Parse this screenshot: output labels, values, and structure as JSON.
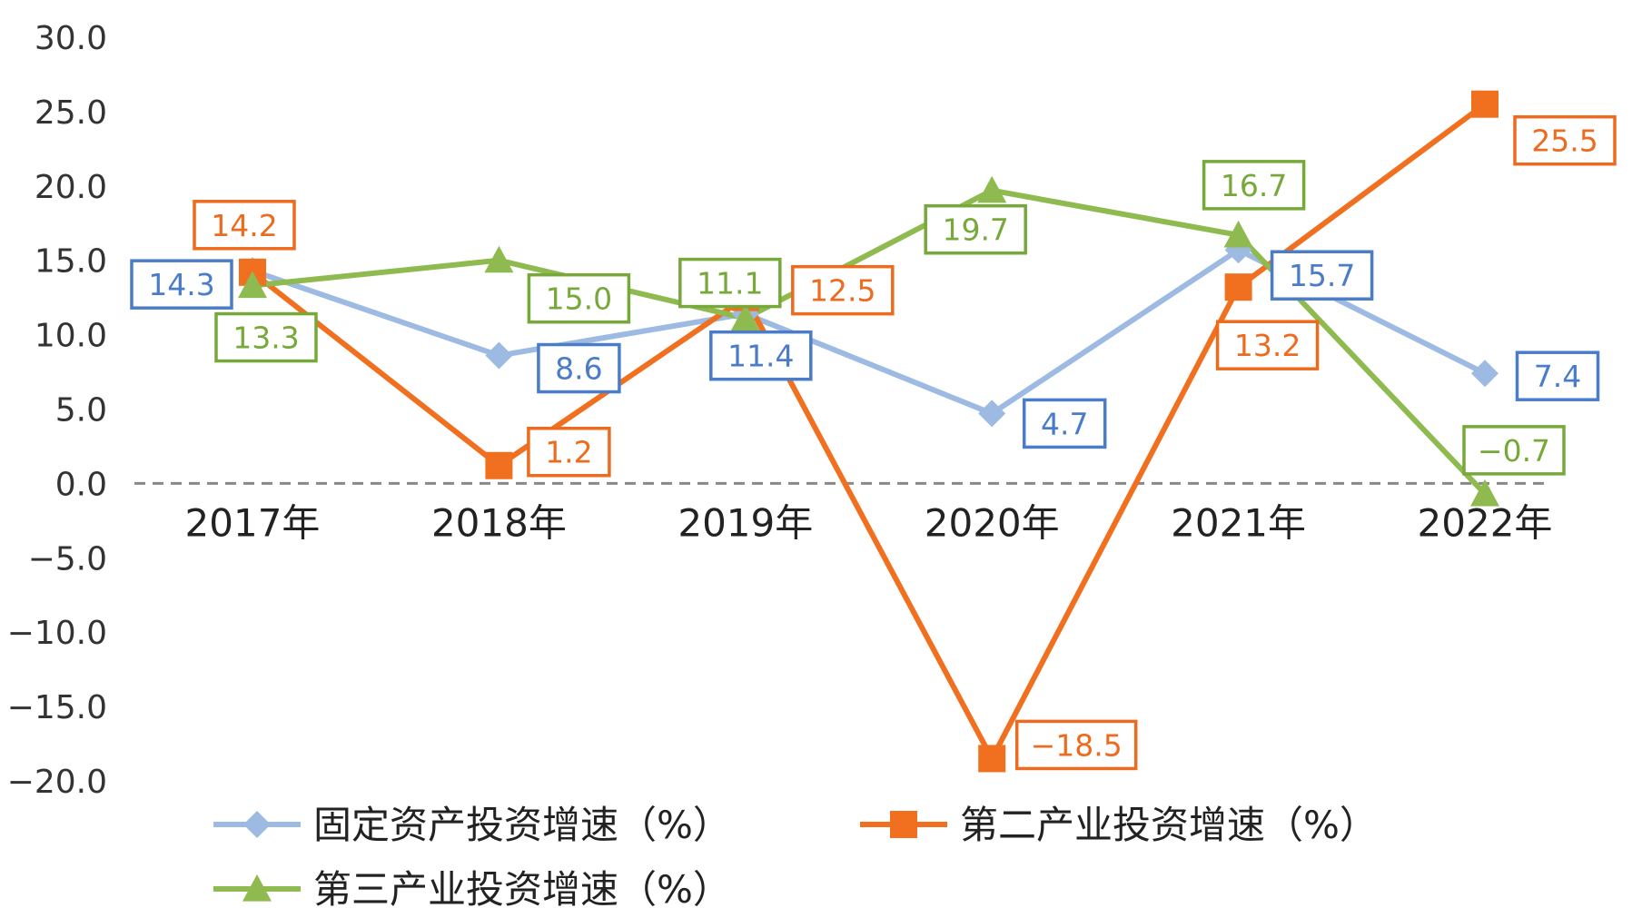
{
  "chart_data": {
    "type": "line",
    "categories": [
      "2017年",
      "2018年",
      "2019年",
      "2020年",
      "2021年",
      "2022年"
    ],
    "y_ticks": [
      "30.0",
      "25.0",
      "20.0",
      "15.0",
      "10.0",
      "5.0",
      "0.0",
      "−5.0",
      "−10.0",
      "−15.0",
      "−20.0"
    ],
    "ylim": [
      -20,
      30
    ],
    "zero_line": "dashed",
    "grid": false,
    "legend_position": "bottom",
    "series": [
      {
        "name": "固定资产投资增速（%）",
        "color": "#9dbae3",
        "label_color": "#4a7cc9",
        "marker": "diamond",
        "values": [
          14.3,
          8.6,
          11.4,
          4.7,
          15.7,
          7.4
        ],
        "labels": [
          "14.3",
          "8.6",
          "11.4",
          "4.7",
          "15.7",
          "7.4"
        ]
      },
      {
        "name": "第二产业投资增速（%）",
        "color": "#f07020",
        "label_color": "#ec6b1f",
        "marker": "square",
        "values": [
          14.2,
          1.2,
          12.5,
          -18.5,
          13.2,
          25.5
        ],
        "labels": [
          "14.2",
          "1.2",
          "12.5",
          "−18.5",
          "13.2",
          "25.5"
        ]
      },
      {
        "name": "第三产业投资增速（%）",
        "color": "#8fba4f",
        "label_color": "#76a83a",
        "marker": "triangle",
        "values": [
          13.3,
          15.0,
          11.1,
          19.7,
          16.7,
          -0.7
        ],
        "labels": [
          "13.3",
          "15.0",
          "11.1",
          "19.7",
          "16.7",
          "−0.7"
        ]
      }
    ]
  }
}
